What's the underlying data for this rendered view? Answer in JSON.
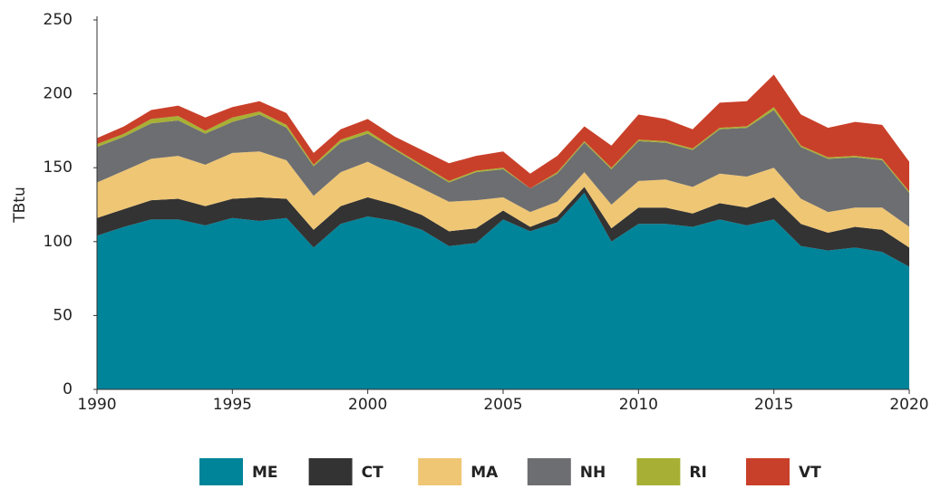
{
  "chart_data": {
    "type": "stacked_area",
    "y_label": "TBtu",
    "x": [
      1990,
      1991,
      1992,
      1993,
      1994,
      1995,
      1996,
      1997,
      1998,
      1999,
      2000,
      2001,
      2002,
      2003,
      2004,
      2005,
      2006,
      2007,
      2008,
      2009,
      2010,
      2011,
      2012,
      2013,
      2014,
      2015,
      2016,
      2017,
      2018,
      2019,
      2020
    ],
    "xlim": [
      1990,
      2020
    ],
    "xticks": [
      1990,
      1995,
      2000,
      2005,
      2010,
      2015,
      2020
    ],
    "ylim": [
      0,
      250
    ],
    "yticks": [
      0,
      50,
      100,
      150,
      200,
      250
    ],
    "grid": false,
    "legend": "bottom",
    "series": [
      {
        "name": "ME",
        "color": "#00849a",
        "values": [
          104,
          110,
          115,
          115,
          111,
          116,
          114,
          116,
          96,
          112,
          117,
          114,
          108,
          97,
          99,
          115,
          107,
          113,
          133,
          100,
          112,
          112,
          110,
          115,
          111,
          115,
          97,
          94,
          96,
          93,
          83
        ]
      },
      {
        "name": "CT",
        "color": "#333333",
        "values": [
          12,
          12,
          13,
          14,
          13,
          13,
          16,
          13,
          12,
          12,
          13,
          11,
          10,
          10,
          10,
          6,
          3,
          4,
          4,
          9,
          11,
          11,
          9,
          11,
          12,
          15,
          15,
          12,
          14,
          15,
          13
        ]
      },
      {
        "name": "MA",
        "color": "#efc674",
        "values": [
          24,
          26,
          28,
          29,
          28,
          31,
          31,
          26,
          23,
          23,
          24,
          20,
          18,
          20,
          19,
          9,
          10,
          10,
          10,
          16,
          18,
          19,
          18,
          20,
          21,
          20,
          17,
          14,
          13,
          15,
          14
        ]
      },
      {
        "name": "NH",
        "color": "#6d6e71",
        "values": [
          24,
          23,
          24,
          24,
          21,
          21,
          25,
          22,
          20,
          20,
          19,
          17,
          15,
          13,
          19,
          19,
          16,
          19,
          20,
          24,
          27,
          25,
          25,
          30,
          33,
          39,
          35,
          36,
          34,
          32,
          23
        ]
      },
      {
        "name": "RI",
        "color": "#a7b034",
        "values": [
          2,
          2,
          3,
          3,
          2,
          3,
          2,
          2,
          1,
          2,
          2,
          1,
          1,
          1,
          1,
          1,
          0,
          1,
          1,
          1,
          1,
          1,
          1,
          1,
          1,
          2,
          1,
          1,
          1,
          1,
          1
        ]
      },
      {
        "name": "VT",
        "color": "#c9402a",
        "values": [
          4,
          5,
          6,
          7,
          9,
          7,
          7,
          8,
          8,
          7,
          8,
          8,
          10,
          12,
          10,
          11,
          10,
          11,
          10,
          15,
          17,
          15,
          13,
          17,
          17,
          22,
          21,
          20,
          23,
          23,
          20
        ]
      }
    ]
  }
}
